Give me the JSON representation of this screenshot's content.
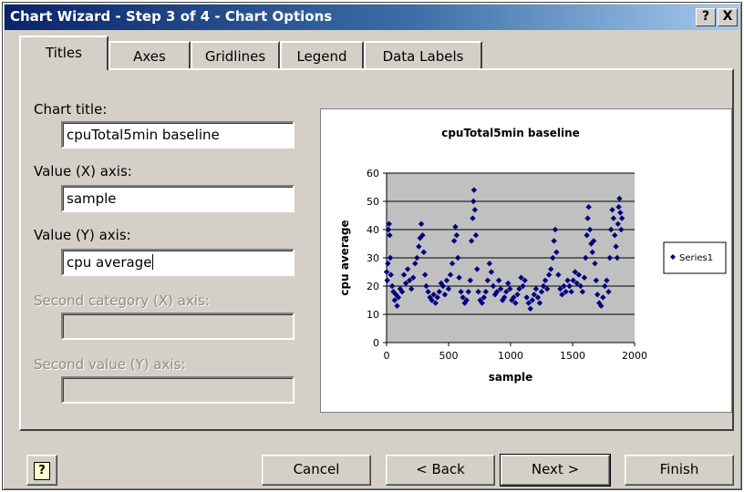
{
  "window": {
    "title": "Chart Wizard - Step 3 of 4 - Chart Options",
    "help_glyph": "?",
    "close_glyph": "X"
  },
  "tabs": [
    {
      "label": "Titles",
      "active": true
    },
    {
      "label": "Axes",
      "active": false
    },
    {
      "label": "Gridlines",
      "active": false
    },
    {
      "label": "Legend",
      "active": false
    },
    {
      "label": "Data Labels",
      "active": false
    }
  ],
  "form": {
    "chart_title": {
      "label": "Chart title:",
      "value": "cpuTotal5min baseline"
    },
    "value_x_axis": {
      "label": "Value (X) axis:",
      "value": "sample"
    },
    "value_y_axis": {
      "label": "Value (Y) axis:",
      "value": "cpu average"
    },
    "second_category_x": {
      "label": "Second category (X) axis:",
      "value": ""
    },
    "second_value_y": {
      "label": "Second value (Y) axis:",
      "value": ""
    }
  },
  "chart_data": {
    "type": "scatter",
    "title": "cpuTotal5min baseline",
    "xlabel": "sample",
    "ylabel": "cpu average",
    "xlim": [
      0,
      2000
    ],
    "ylim": [
      0,
      60
    ],
    "xticks": [
      "0",
      "500",
      "1000",
      "1500",
      "2000"
    ],
    "yticks": [
      "0",
      "10",
      "20",
      "30",
      "40",
      "50",
      "60"
    ],
    "grid": "horizontal",
    "legend_position": "right",
    "plot_area_color": "#c0c0c0",
    "marker_color": "#000080",
    "series": [
      {
        "name": "Series1",
        "points": [
          [
            0,
            25
          ],
          [
            5,
            22
          ],
          [
            10,
            28
          ],
          [
            15,
            40
          ],
          [
            20,
            42
          ],
          [
            25,
            38
          ],
          [
            30,
            30
          ],
          [
            35,
            24
          ],
          [
            45,
            20
          ],
          [
            55,
            18
          ],
          [
            65,
            15
          ],
          [
            75,
            17
          ],
          [
            85,
            13
          ],
          [
            95,
            16
          ],
          [
            110,
            19
          ],
          [
            125,
            18
          ],
          [
            140,
            24
          ],
          [
            155,
            21
          ],
          [
            170,
            26
          ],
          [
            185,
            22
          ],
          [
            200,
            19
          ],
          [
            215,
            23
          ],
          [
            230,
            28
          ],
          [
            245,
            30
          ],
          [
            260,
            34
          ],
          [
            270,
            37
          ],
          [
            280,
            42
          ],
          [
            290,
            38
          ],
          [
            300,
            32
          ],
          [
            310,
            24
          ],
          [
            320,
            20
          ],
          [
            335,
            18
          ],
          [
            350,
            16
          ],
          [
            365,
            15
          ],
          [
            380,
            17
          ],
          [
            395,
            14
          ],
          [
            410,
            16
          ],
          [
            425,
            18
          ],
          [
            440,
            21
          ],
          [
            455,
            20
          ],
          [
            470,
            17
          ],
          [
            485,
            22
          ],
          [
            500,
            19
          ],
          [
            515,
            24
          ],
          [
            530,
            28
          ],
          [
            545,
            36
          ],
          [
            555,
            41
          ],
          [
            565,
            38
          ],
          [
            575,
            30
          ],
          [
            585,
            23
          ],
          [
            600,
            18
          ],
          [
            615,
            16
          ],
          [
            630,
            14
          ],
          [
            645,
            15
          ],
          [
            660,
            18
          ],
          [
            675,
            22
          ],
          [
            685,
            36
          ],
          [
            695,
            44
          ],
          [
            700,
            50
          ],
          [
            705,
            54
          ],
          [
            712,
            47
          ],
          [
            720,
            38
          ],
          [
            730,
            26
          ],
          [
            740,
            18
          ],
          [
            755,
            15
          ],
          [
            770,
            14
          ],
          [
            785,
            16
          ],
          [
            800,
            18
          ],
          [
            815,
            22
          ],
          [
            830,
            28
          ],
          [
            845,
            25
          ],
          [
            860,
            20
          ],
          [
            875,
            17
          ],
          [
            890,
            18
          ],
          [
            905,
            22
          ],
          [
            920,
            19
          ],
          [
            935,
            15
          ],
          [
            950,
            16
          ],
          [
            965,
            18
          ],
          [
            980,
            21
          ],
          [
            995,
            19
          ],
          [
            1010,
            15
          ],
          [
            1025,
            16
          ],
          [
            1040,
            14
          ],
          [
            1055,
            17
          ],
          [
            1070,
            19
          ],
          [
            1085,
            23
          ],
          [
            1100,
            20
          ],
          [
            1115,
            22
          ],
          [
            1130,
            16
          ],
          [
            1145,
            14
          ],
          [
            1160,
            12
          ],
          [
            1175,
            15
          ],
          [
            1190,
            17
          ],
          [
            1205,
            19
          ],
          [
            1220,
            16
          ],
          [
            1235,
            14
          ],
          [
            1250,
            18
          ],
          [
            1265,
            20
          ],
          [
            1280,
            22
          ],
          [
            1295,
            19
          ],
          [
            1310,
            24
          ],
          [
            1325,
            26
          ],
          [
            1340,
            30
          ],
          [
            1350,
            36
          ],
          [
            1360,
            40
          ],
          [
            1370,
            32
          ],
          [
            1385,
            24
          ],
          [
            1400,
            19
          ],
          [
            1415,
            17
          ],
          [
            1430,
            20
          ],
          [
            1445,
            18
          ],
          [
            1460,
            22
          ],
          [
            1475,
            20
          ],
          [
            1490,
            18
          ],
          [
            1505,
            22
          ],
          [
            1520,
            25
          ],
          [
            1535,
            21
          ],
          [
            1550,
            24
          ],
          [
            1565,
            20
          ],
          [
            1580,
            18
          ],
          [
            1595,
            23
          ],
          [
            1605,
            30
          ],
          [
            1615,
            38
          ],
          [
            1622,
            44
          ],
          [
            1630,
            48
          ],
          [
            1640,
            40
          ],
          [
            1650,
            35
          ],
          [
            1660,
            32
          ],
          [
            1670,
            36
          ],
          [
            1680,
            28
          ],
          [
            1690,
            22
          ],
          [
            1700,
            17
          ],
          [
            1715,
            14
          ],
          [
            1730,
            13
          ],
          [
            1745,
            16
          ],
          [
            1760,
            20
          ],
          [
            1775,
            22
          ],
          [
            1790,
            18
          ],
          [
            1800,
            30
          ],
          [
            1810,
            40
          ],
          [
            1820,
            47
          ],
          [
            1830,
            44
          ],
          [
            1840,
            38
          ],
          [
            1850,
            34
          ],
          [
            1860,
            30
          ],
          [
            1866,
            42
          ],
          [
            1872,
            48
          ],
          [
            1878,
            51
          ],
          [
            1885,
            46
          ],
          [
            1892,
            40
          ],
          [
            1898,
            44
          ]
        ]
      }
    ]
  },
  "buttons": {
    "help": "?",
    "cancel": "Cancel",
    "back": "< Back",
    "next": "Next >",
    "finish": "Finish"
  }
}
